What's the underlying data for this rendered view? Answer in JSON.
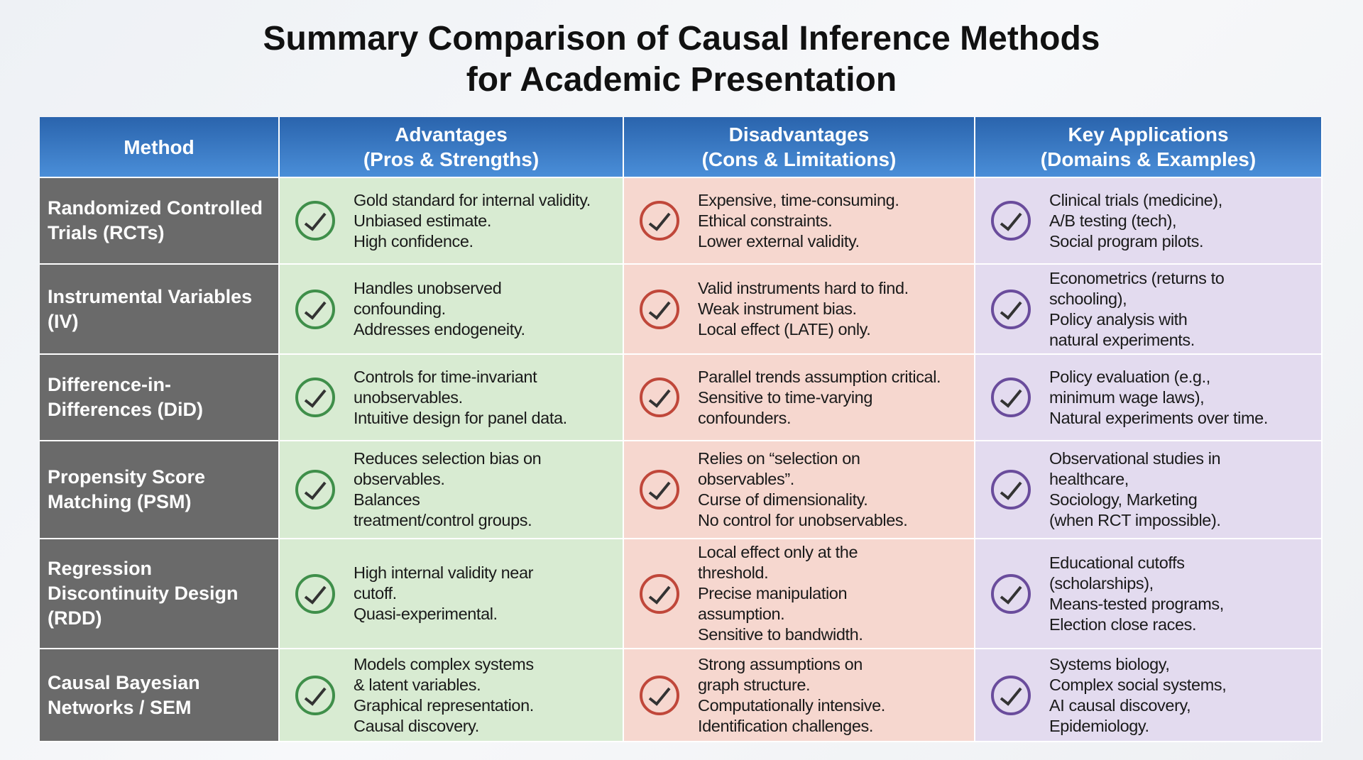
{
  "title": [
    "Summary Comparison of Causal Inference Methods",
    "for Academic Presentation"
  ],
  "table": {
    "header": [
      [
        "Method"
      ],
      [
        "Advantages",
        "(Pros & Strengths)"
      ],
      [
        "Disadvantages",
        "(Cons & Limitations)"
      ],
      [
        "Key Applications",
        "(Domains & Examples)"
      ]
    ],
    "rows": [
      [
        [
          "Randomized Controlled",
          "Trials (RCTs)"
        ],
        [
          "Gold standard for internal validity.",
          "Unbiased estimate.",
          "High confidence."
        ],
        [
          "Expensive, time-consuming.",
          "Ethical constraints.",
          "Lower external validity."
        ],
        [
          "Clinical trials (medicine),",
          "A/B testing (tech),",
          "Social program pilots."
        ]
      ],
      [
        [
          "Instrumental Variables",
          "(IV)"
        ],
        [
          "Handles unobserved",
          "confounding.",
          "Addresses endogeneity."
        ],
        [
          "Valid instruments hard to find.",
          "Weak instrument bias.",
          "Local effect (LATE) only."
        ],
        [
          "Econometrics (returns to",
          "schooling),",
          "Policy analysis with",
          "natural experiments."
        ]
      ],
      [
        [
          "Difference-in-",
          "Differences (DiD)"
        ],
        [
          "Controls for time-invariant",
          "unobservables.",
          "Intuitive design for panel data."
        ],
        [
          "Parallel trends assumption critical.",
          "Sensitive to time-varying",
          "confounders."
        ],
        [
          "Policy evaluation (e.g.,",
          "minimum wage laws),",
          "Natural experiments over time."
        ]
      ],
      [
        [
          "Propensity Score",
          "Matching (PSM)"
        ],
        [
          "Reduces selection bias on",
          "observables.",
          "Balances",
          "treatment/control groups."
        ],
        [
          "Relies on “selection on",
          "observables”.",
          "Curse of dimensionality.",
          "No control for unobservables."
        ],
        [
          "Observational studies in",
          "healthcare,",
          "Sociology, Marketing",
          "(when RCT impossible)."
        ]
      ],
      [
        [
          "Regression",
          "Discontinuity Design",
          "(RDD)"
        ],
        [
          "High internal validity near",
          "cutoff.",
          "Quasi-experimental."
        ],
        [
          "Local effect only at the",
          "threshold.",
          "Precise manipulation",
          "assumption.",
          "Sensitive to bandwidth."
        ],
        [
          "Educational cutoffs",
          "(scholarships),",
          "Means-tested programs,",
          "Election close races."
        ]
      ],
      [
        [
          "Causal Bayesian",
          "Networks / SEM"
        ],
        [
          "Models complex systems",
          "& latent variables.",
          "Graphical representation.",
          "Causal discovery."
        ],
        [
          "Strong assumptions on",
          "graph structure.",
          "Computationally intensive.",
          "Identification challenges."
        ],
        [
          "Systems biology,",
          "Complex social systems,",
          "AI causal discovery,",
          "Epidemiology."
        ]
      ]
    ]
  }
}
